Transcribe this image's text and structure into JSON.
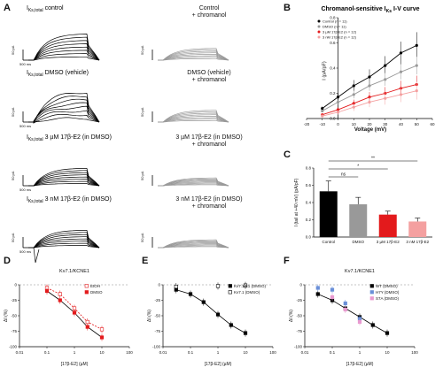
{
  "panel_letters": [
    "A",
    "B",
    "C",
    "D",
    "E",
    "F"
  ],
  "panelA": {
    "labels": [
      {
        "main": "I",
        "sub": "Ks,total",
        "rest": " control"
      },
      {
        "main": "Control",
        "line2": "+ chromanol"
      },
      {
        "main": "I",
        "sub": "Ks,total",
        "rest": " DMSO (vehicle)"
      },
      {
        "main": "DMSO (vehicle)",
        "line2": "+ chromanol"
      },
      {
        "main": "I",
        "sub": "Ks,total",
        "rest": " 3 µM 17β-E2 (in DMSO)"
      },
      {
        "main": "3 µM 17β-E2 (in DMSO)",
        "line2": "+ chromanol"
      },
      {
        "main": "I",
        "sub": "Ks,total",
        "rest": " 3 nM 17β-E2 (in DMSO)"
      },
      {
        "main": "3 nM 17β-E2 (in DMSO)",
        "line2": "+ chromanol"
      }
    ],
    "scale_current": [
      "50 pA",
      "50 pA",
      "50 pA",
      "50 pA",
      "50 pA",
      "50 pA",
      "50 pA",
      "50 pA"
    ],
    "scale_time": [
      "500 ms",
      "500 ms",
      "500 ms",
      "500 ms"
    ]
  },
  "panelB": {
    "title": "Chromanol-sensitive I",
    "title_sub": "Ks",
    "title_rest": " I-V curve",
    "xlabel": "Voltage (mV)",
    "ylabel": "I (pA/pF)",
    "colors": {
      "Control": "#000000",
      "DMSO": "#999999",
      "E2_3uM": "#e31a1c",
      "E2_3nM": "#f4a0a0"
    },
    "chart_data": {
      "type": "line",
      "x": [
        -10,
        0,
        10,
        20,
        30,
        40,
        50
      ],
      "xlim": [
        -20,
        60
      ],
      "ylim": [
        0,
        0.8
      ],
      "series": [
        {
          "name": "Control (n = 11)",
          "values": [
            0.08,
            0.17,
            0.26,
            0.33,
            0.42,
            0.52,
            0.58
          ]
        },
        {
          "name": "DMSO (n = 11)",
          "values": [
            0.06,
            0.13,
            0.19,
            0.26,
            0.31,
            0.37,
            0.42
          ]
        },
        {
          "name": "3 µM 17β-E2 (n = 12)",
          "values": [
            0.03,
            0.07,
            0.12,
            0.17,
            0.2,
            0.24,
            0.27
          ]
        },
        {
          "name": "3 nM 17β-E2 (n = 12)",
          "values": [
            0.02,
            0.05,
            0.09,
            0.13,
            0.16,
            0.19,
            0.22
          ]
        }
      ],
      "ticks_x": [
        "-20",
        "-10",
        "0",
        "10",
        "20",
        "30",
        "40",
        "50",
        "60"
      ],
      "ticks_y": [
        "0.0",
        "0.2",
        "0.4",
        "0.6",
        "0.8"
      ]
    }
  },
  "panelC": {
    "ylabel": "I (tail at +40 mV) (pA/pF)",
    "sig": [
      "ns",
      "*",
      "**"
    ],
    "chart_data": {
      "type": "bar",
      "categories": [
        "Control",
        "DMSO",
        "3 µM 17β-E2",
        "3 nM 17β-E2"
      ],
      "values": [
        0.53,
        0.38,
        0.26,
        0.18
      ],
      "errors": [
        0.12,
        0.08,
        0.04,
        0.04
      ],
      "colors": [
        "#000000",
        "#999999",
        "#e31a1c",
        "#f4a0a0"
      ],
      "ylim": [
        0,
        0.8
      ],
      "ticks_y": [
        "0.0",
        "0.2",
        "0.4",
        "0.6",
        "0.8"
      ]
    }
  },
  "panelD": {
    "title": "Kv7.1/KCNE1",
    "xlabel": "[17β-E2] (µM)",
    "ylabel": "ΔI (%)",
    "legend": [
      "EtOH",
      "DMSO"
    ],
    "chart_data": {
      "type": "scatter",
      "x": [
        0.1,
        0.3,
        1,
        3,
        10
      ],
      "series": [
        {
          "name": "EtOH",
          "values": [
            -5,
            -15,
            -38,
            -60,
            -72
          ]
        },
        {
          "name": "DMSO",
          "values": [
            -10,
            -25,
            -45,
            -68,
            -85
          ]
        }
      ],
      "ylim": [
        -100,
        0
      ],
      "ticks_x": [
        "0.01",
        "0.1",
        "1",
        "10",
        "100"
      ],
      "ticks_y": [
        "0",
        "-25",
        "-50",
        "-75",
        "-100"
      ]
    }
  },
  "panelE": {
    "xlabel": "[17β-E2] (µM)",
    "ylabel": "ΔI (%)",
    "legend": [
      "Kv7.1/E1 (DMSO)",
      "Kv7.1 (DMSO)"
    ],
    "chart_data": {
      "type": "scatter",
      "x": [
        0.03,
        0.1,
        0.3,
        1,
        3,
        10
      ],
      "series": [
        {
          "name": "Kv7.1/E1 (DMSO)",
          "values": [
            -8,
            -15,
            -28,
            -48,
            -65,
            -78
          ]
        },
        {
          "name": "Kv7.1 (DMSO)",
          "values": [
            -3,
            null,
            null,
            -2,
            null,
            -1
          ]
        }
      ],
      "ylim": [
        -100,
        0
      ],
      "ticks_x": [
        "0.01",
        "0.1",
        "1",
        "10",
        "100"
      ],
      "ticks_y": [
        "0",
        "-25",
        "-50",
        "-75",
        "-100"
      ]
    }
  },
  "panelF": {
    "title": "Kv7.1/KCNE1",
    "xlabel": "[17β-E2] (µM)",
    "ylabel": "ΔI (%)",
    "legend": [
      "WT (DMSO)",
      "H7Y (DMSO)",
      "S7A (DMSO)"
    ],
    "legend_colors": [
      "#000000",
      "#6a8fd8",
      "#e99ad0"
    ],
    "chart_data": {
      "type": "scatter",
      "x": [
        0.03,
        0.1,
        0.3,
        1,
        3,
        10
      ],
      "series": [
        {
          "name": "WT (DMSO)",
          "values": [
            -15,
            -25,
            -38,
            -52,
            -65,
            -78
          ]
        },
        {
          "name": "H7Y (DMSO)",
          "values": [
            -5,
            -8,
            -30,
            -55,
            null,
            null
          ]
        },
        {
          "name": "S7A (DMSO)",
          "values": [
            null,
            -20,
            -40,
            -60,
            null,
            null
          ]
        }
      ],
      "ylim": [
        -100,
        0
      ],
      "ticks_x": [
        "0.01",
        "0.1",
        "1",
        "10",
        "100"
      ],
      "ticks_y": [
        "0",
        "-25",
        "-50",
        "-75",
        "-100"
      ]
    }
  }
}
